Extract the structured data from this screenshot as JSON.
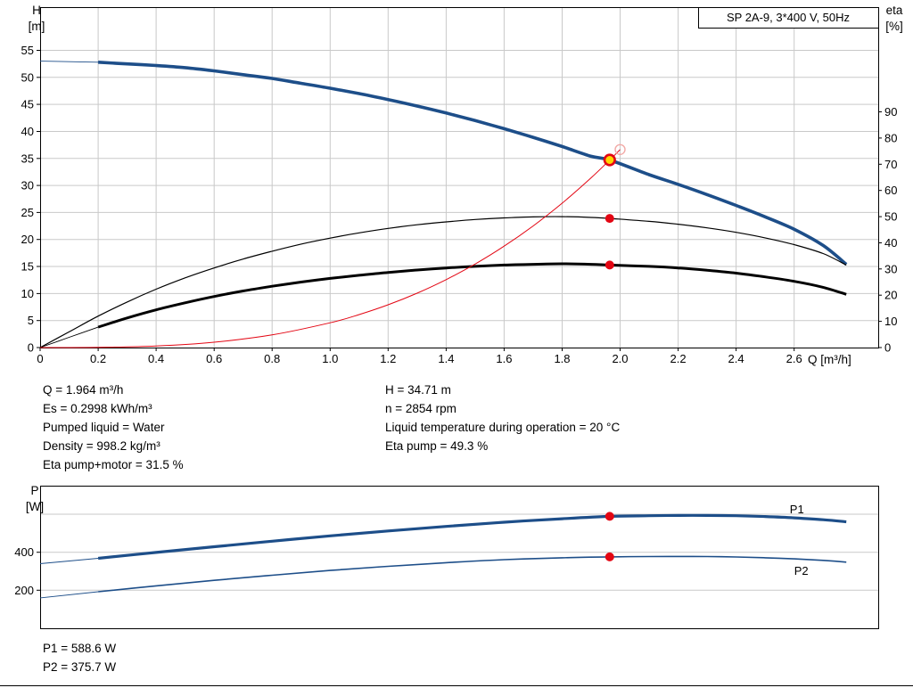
{
  "colors": {
    "blue": "#1d4e89",
    "black": "#000000",
    "red": "#e30613",
    "red_light": "#f2a9a6",
    "yellow": "#ffd400",
    "grid": "#c9c9c9",
    "axis": "#000000"
  },
  "axis_labels": {
    "h": [
      "H",
      "[m]"
    ],
    "eta": [
      "eta",
      "[%]"
    ],
    "q": "Q [m³/h]",
    "p": [
      "P",
      "[W]"
    ]
  },
  "info": {
    "left_lines": [
      "Q = 1.964 m³/h",
      "Es = 0.2998 kWh/m³",
      "Pumped liquid = Water",
      "Density = 998.2 kg/m³",
      "Eta pump+motor = 31.5 %"
    ],
    "right_lines": [
      "H = 34.71 m",
      "n = 2854 rpm",
      "Liquid temperature during operation = 20 °C",
      "Eta pump = 49.3 %"
    ]
  },
  "power": {
    "lines": [
      "P1 = 588.6 W",
      "P2 = 375.7 W"
    ]
  },
  "chart_data": [
    {
      "type": "line",
      "title": "SP 2A-9, 3*400 V, 50Hz",
      "xlabel": "Q [m³/h]",
      "ylabel_left": "H [m]",
      "ylabel_right": "eta [%]",
      "x": {
        "min": 0,
        "max": 2.89,
        "grid": [
          0.2,
          0.4,
          0.6,
          0.8,
          1.0,
          1.2,
          1.4,
          1.6,
          1.8,
          2.0,
          2.2,
          2.4,
          2.6
        ],
        "ticks": [
          [
            0,
            "0"
          ],
          [
            0.2,
            "0.2"
          ],
          [
            0.4,
            "0.4"
          ],
          [
            0.6,
            "0.6"
          ],
          [
            0.8,
            "0.8"
          ],
          [
            1,
            "1.0"
          ],
          [
            1.2,
            "1.2"
          ],
          [
            1.4,
            "1.4"
          ],
          [
            1.6,
            "1.6"
          ],
          [
            1.8,
            "1.8"
          ],
          [
            2,
            "2.0"
          ],
          [
            2.2,
            "2.2"
          ],
          [
            2.4,
            "2.4"
          ],
          [
            2.6,
            "2.6"
          ]
        ]
      },
      "y_left": {
        "min": 0,
        "max": 63,
        "grid": [
          5,
          10,
          15,
          20,
          25,
          30,
          35,
          40,
          45,
          50,
          55
        ],
        "ticks": [
          [
            0,
            "0"
          ],
          [
            5,
            "5"
          ],
          [
            10,
            "10"
          ],
          [
            15,
            "15"
          ],
          [
            20,
            "20"
          ],
          [
            25,
            "25"
          ],
          [
            30,
            "30"
          ],
          [
            35,
            "35"
          ],
          [
            40,
            "40"
          ],
          [
            45,
            "45"
          ],
          [
            50,
            "50"
          ],
          [
            55,
            "55"
          ]
        ]
      },
      "y_right": {
        "min": 0,
        "max": 130,
        "ticks": [
          [
            0,
            "0"
          ],
          [
            10,
            "10"
          ],
          [
            20,
            "20"
          ],
          [
            30,
            "30"
          ],
          [
            40,
            "40"
          ],
          [
            50,
            "50"
          ],
          [
            60,
            "60"
          ],
          [
            70,
            "70"
          ],
          [
            80,
            "80"
          ],
          [
            90,
            "90"
          ]
        ]
      },
      "series": [
        {
          "name": "head-curve",
          "axis": "left",
          "color": "blue",
          "width": 3.6,
          "thin_until": 0.2,
          "points": [
            [
              0,
              53
            ],
            [
              0.1,
              52.9
            ],
            [
              0.2,
              52.8
            ],
            [
              0.3,
              52.5
            ],
            [
              0.4,
              52.2
            ],
            [
              0.5,
              51.8
            ],
            [
              0.6,
              51.2
            ],
            [
              0.7,
              50.5
            ],
            [
              0.8,
              49.8
            ],
            [
              0.9,
              48.9
            ],
            [
              1,
              48
            ],
            [
              1.1,
              47
            ],
            [
              1.2,
              45.9
            ],
            [
              1.3,
              44.7
            ],
            [
              1.4,
              43.4
            ],
            [
              1.5,
              42
            ],
            [
              1.6,
              40.5
            ],
            [
              1.7,
              38.9
            ],
            [
              1.8,
              37.2
            ],
            [
              1.9,
              35.4
            ],
            [
              1.964,
              34.71
            ],
            [
              2.1,
              32
            ],
            [
              2.2,
              30.2
            ],
            [
              2.3,
              28.3
            ],
            [
              2.4,
              26.3
            ],
            [
              2.5,
              24.2
            ],
            [
              2.6,
              21.9
            ],
            [
              2.7,
              18.9
            ],
            [
              2.78,
              15.4
            ]
          ]
        },
        {
          "name": "eta-pump-curve",
          "axis": "right",
          "color": "black",
          "width": 1.2,
          "points": [
            [
              0,
              0
            ],
            [
              0.1,
              6
            ],
            [
              0.2,
              12
            ],
            [
              0.3,
              17.4
            ],
            [
              0.4,
              22.3
            ],
            [
              0.5,
              26.6
            ],
            [
              0.6,
              30.4
            ],
            [
              0.7,
              33.8
            ],
            [
              0.8,
              36.8
            ],
            [
              0.9,
              39.5
            ],
            [
              1,
              41.8
            ],
            [
              1.1,
              43.8
            ],
            [
              1.2,
              45.5
            ],
            [
              1.3,
              46.9
            ],
            [
              1.4,
              48
            ],
            [
              1.5,
              48.9
            ],
            [
              1.6,
              49.5
            ],
            [
              1.7,
              49.9
            ],
            [
              1.8,
              50
            ],
            [
              1.9,
              49.7
            ],
            [
              1.964,
              49.3
            ],
            [
              2.1,
              48.2
            ],
            [
              2.2,
              47.1
            ],
            [
              2.3,
              45.7
            ],
            [
              2.4,
              44
            ],
            [
              2.5,
              41.9
            ],
            [
              2.6,
              39.3
            ],
            [
              2.7,
              35.9
            ],
            [
              2.78,
              31.5
            ]
          ]
        },
        {
          "name": "eta-pump-motor-curve",
          "axis": "right",
          "color": "black",
          "width": 3,
          "thin_until": 0.2,
          "points": [
            [
              0,
              0
            ],
            [
              0.1,
              3.9
            ],
            [
              0.2,
              7.8
            ],
            [
              0.3,
              11.3
            ],
            [
              0.4,
              14.4
            ],
            [
              0.5,
              17.1
            ],
            [
              0.6,
              19.5
            ],
            [
              0.7,
              21.6
            ],
            [
              0.8,
              23.4
            ],
            [
              0.9,
              25
            ],
            [
              1,
              26.4
            ],
            [
              1.1,
              27.6
            ],
            [
              1.2,
              28.7
            ],
            [
              1.3,
              29.6
            ],
            [
              1.4,
              30.4
            ],
            [
              1.5,
              31
            ],
            [
              1.6,
              31.5
            ],
            [
              1.7,
              31.8
            ],
            [
              1.8,
              32
            ],
            [
              1.9,
              31.8
            ],
            [
              1.964,
              31.5
            ],
            [
              2.1,
              31
            ],
            [
              2.2,
              30.4
            ],
            [
              2.3,
              29.5
            ],
            [
              2.4,
              28.4
            ],
            [
              2.5,
              27
            ],
            [
              2.6,
              25.3
            ],
            [
              2.7,
              23
            ],
            [
              2.78,
              20.3
            ]
          ]
        },
        {
          "name": "system-curve",
          "axis": "left",
          "color": "red",
          "width": 1,
          "points": [
            [
              0,
              0
            ],
            [
              0.2,
              0.04
            ],
            [
              0.4,
              0.29
            ],
            [
              0.6,
              0.99
            ],
            [
              0.8,
              2.35
            ],
            [
              1,
              4.58
            ],
            [
              1.1,
              6.1
            ],
            [
              1.2,
              7.91
            ],
            [
              1.3,
              10.06
            ],
            [
              1.4,
              12.57
            ],
            [
              1.5,
              15.46
            ],
            [
              1.6,
              18.76
            ],
            [
              1.7,
              22.5
            ],
            [
              1.8,
              26.71
            ],
            [
              1.9,
              31.41
            ],
            [
              1.964,
              34.71
            ],
            [
              2,
              36.64
            ]
          ]
        }
      ],
      "markers": [
        {
          "name": "system-curve-end-marker",
          "q": 2.0,
          "v": 36.64,
          "axis": "left",
          "style": "open"
        },
        {
          "name": "duty-point-marker",
          "q": 1.964,
          "v": 34.71,
          "axis": "left",
          "style": "duty"
        },
        {
          "name": "eta-pump-duty-marker",
          "q": 1.964,
          "v": 49.3,
          "axis": "right",
          "style": "dot"
        },
        {
          "name": "eta-total-duty-marker",
          "q": 1.964,
          "v": 31.5,
          "axis": "right",
          "style": "dot"
        }
      ]
    },
    {
      "type": "line",
      "xlabel": "",
      "ylabel_left": "P [W]",
      "x": {
        "min": 0,
        "max": 2.89,
        "grid": [],
        "ticks": []
      },
      "y_left": {
        "min": 0,
        "max": 750,
        "grid": [
          200,
          400,
          600
        ],
        "ticks": [
          [
            200,
            "200"
          ],
          [
            400,
            "400"
          ]
        ]
      },
      "series": [
        {
          "name": "p1-curve",
          "axis": "left",
          "color": "blue",
          "width": 3.2,
          "thin_until": 0.2,
          "points": [
            [
              0,
              340
            ],
            [
              0.2,
              368
            ],
            [
              0.4,
              399
            ],
            [
              0.6,
              429
            ],
            [
              0.8,
              458
            ],
            [
              1,
              486
            ],
            [
              1.2,
              512
            ],
            [
              1.4,
              536
            ],
            [
              1.6,
              558
            ],
            [
              1.8,
              576
            ],
            [
              1.964,
              588.6
            ],
            [
              2.1,
              592
            ],
            [
              2.2,
              593.5
            ],
            [
              2.3,
              593.5
            ],
            [
              2.4,
              592
            ],
            [
              2.5,
              588
            ],
            [
              2.6,
              581
            ],
            [
              2.7,
              571
            ],
            [
              2.78,
              560
            ]
          ]
        },
        {
          "name": "p2-curve",
          "axis": "left",
          "color": "blue",
          "width": 1.6,
          "thin_until": 0.2,
          "points": [
            [
              0,
              160
            ],
            [
              0.2,
              192
            ],
            [
              0.4,
              223
            ],
            [
              0.6,
              252
            ],
            [
              0.8,
              279
            ],
            [
              1,
              304
            ],
            [
              1.2,
              326
            ],
            [
              1.4,
              345
            ],
            [
              1.6,
              361
            ],
            [
              1.8,
              371
            ],
            [
              1.964,
              375.7
            ],
            [
              2.1,
              377.5
            ],
            [
              2.2,
              378
            ],
            [
              2.3,
              377.5
            ],
            [
              2.4,
              375
            ],
            [
              2.5,
              371
            ],
            [
              2.6,
              365
            ],
            [
              2.7,
              357
            ],
            [
              2.78,
              348
            ]
          ]
        }
      ],
      "markers": [
        {
          "name": "p1-duty-marker",
          "q": 1.964,
          "v": 588.6,
          "axis": "left",
          "style": "dot"
        },
        {
          "name": "p2-duty-marker",
          "q": 1.964,
          "v": 375.7,
          "axis": "left",
          "style": "dot"
        }
      ],
      "labels": [
        {
          "text": "P1",
          "q": 2.585,
          "v": 605
        },
        {
          "text": "P2",
          "q": 2.6,
          "v": 281
        }
      ]
    }
  ]
}
